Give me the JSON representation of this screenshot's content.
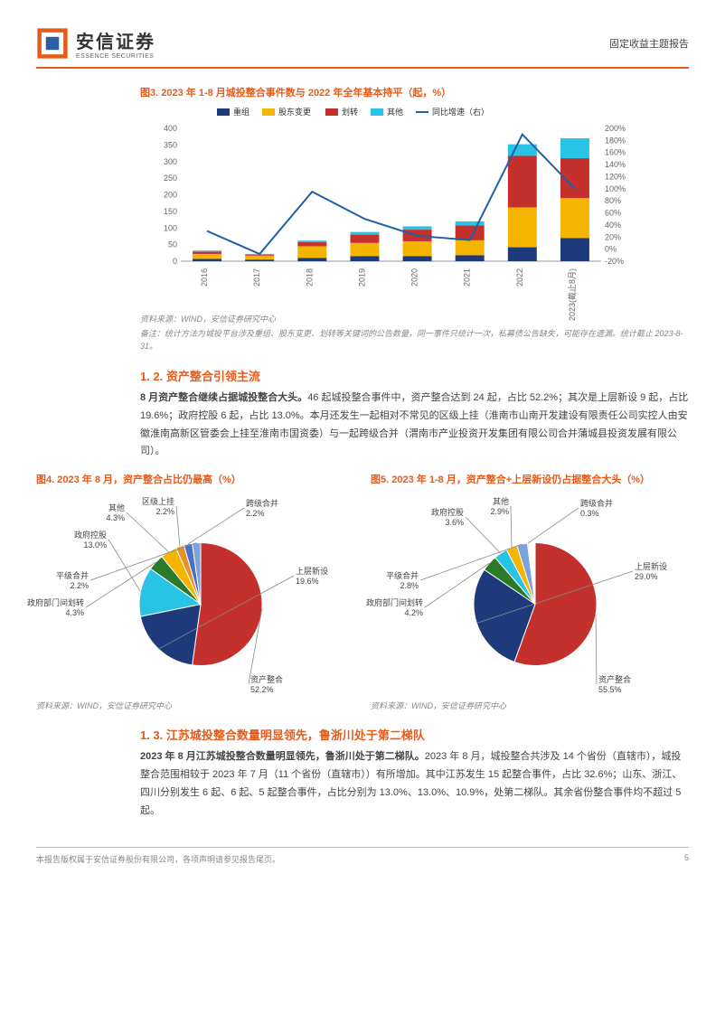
{
  "header": {
    "logo_cn": "安信证券",
    "logo_en": "ESSENCE SECURITIES",
    "doc_kind": "固定收益主题报告"
  },
  "chart3": {
    "title": "图3. 2023 年 1-8 月城投整合事件数与 2022 年全年基本持平（起，%）",
    "type": "stacked-bar-line",
    "categories": [
      "2016",
      "2017",
      "2018",
      "2019",
      "2020",
      "2021",
      "2022",
      "2023(截止8月)"
    ],
    "legend": [
      "重组",
      "股东变更",
      "划转",
      "其他",
      "同比增速（右）"
    ],
    "colors": {
      "重组": "#1e3a7a",
      "股东变更": "#f4b400",
      "划转": "#c4302b",
      "其他": "#29c3e6",
      "line": "#1e5fa8"
    },
    "yleft": {
      "min": 0,
      "max": 400,
      "step": 50
    },
    "yright": {
      "min": -20,
      "max": 200,
      "step": 20
    },
    "stacks": {
      "重组": [
        7,
        5,
        10,
        15,
        15,
        18,
        42,
        70
      ],
      "股东变更": [
        15,
        12,
        35,
        40,
        45,
        45,
        120,
        120
      ],
      "划转": [
        7,
        3,
        12,
        25,
        35,
        45,
        155,
        120
      ],
      "其他": [
        3,
        2,
        5,
        8,
        10,
        12,
        35,
        60
      ]
    },
    "line": [
      30,
      -8,
      95,
      50,
      22,
      15,
      190,
      100
    ],
    "source": "资料来源：WIND，安信证券研究中心",
    "note": "备注：统计方法为城投平台涉及重组、股东变更、划转等关键词的公告数量，同一事件只统计一次，私募债公告缺失，可能存在遗漏。统计截止 2023-8-31。"
  },
  "sec12": {
    "heading": "1. 2. 资产整合引领主流",
    "bold": "8 月资产整合继续占据城投整合大头。",
    "body": "46 起城投整合事件中，资产整合达到 24 起，占比 52.2%；其次是上层新设 9 起，占比 19.6%；政府控股 6 起，占比 13.0%。本月还发生一起相对不常见的区级上挂（淮南市山南开发建设有限责任公司实控人由安徽淮南高新区管委会上挂至淮南市国资委）与一起跨级合并（渭南市产业投资开发集团有限公司合并蒲城县投资发展有限公司）。"
  },
  "chart4": {
    "title": "图4. 2023 年 8 月，资产整合占比仍最高（%）",
    "type": "pie",
    "slices": [
      {
        "label": "资产整合",
        "value": 52.2,
        "color": "#c4302b"
      },
      {
        "label": "上层新设",
        "value": 19.6,
        "color": "#1e3a7a"
      },
      {
        "label": "政府控股",
        "value": 13.0,
        "color": "#29c3e6"
      },
      {
        "label": "政府部门间划转",
        "value": 4.3,
        "color": "#2a7a2a"
      },
      {
        "label": "其他",
        "value": 4.3,
        "color": "#f4b400"
      },
      {
        "label": "区级上挂",
        "value": 2.2,
        "color": "#e8932a"
      },
      {
        "label": "跨级合并",
        "value": 2.2,
        "color": "#4a6fc7"
      },
      {
        "label": "平级合并",
        "value": 2.2,
        "color": "#7aa3d9"
      }
    ],
    "source": "资料来源：WIND，安信证券研究中心"
  },
  "chart5": {
    "title": "图5. 2023 年 1-8 月，资产整合+上层新设仍占据整合大头（%）",
    "type": "pie",
    "slices": [
      {
        "label": "资产整合",
        "value": 55.5,
        "color": "#c4302b"
      },
      {
        "label": "上层新设",
        "value": 29.0,
        "color": "#1e3a7a"
      },
      {
        "label": "政府部门间划转",
        "value": 4.2,
        "color": "#2a7a2a"
      },
      {
        "label": "政府控股",
        "value": 3.6,
        "color": "#29c3e6"
      },
      {
        "label": "其他",
        "value": 2.9,
        "color": "#f4b400"
      },
      {
        "label": "平级合并",
        "value": 2.8,
        "color": "#7aa3d9"
      },
      {
        "label": "跨级合并",
        "value": 0.3,
        "color": "#e8932a"
      }
    ],
    "source": "资料来源：WIND，安信证券研究中心"
  },
  "sec13": {
    "heading": "1. 3. 江苏城投整合数量明显领先，鲁浙川处于第二梯队",
    "bold": "2023 年 8 月江苏城投整合数量明显领先，鲁浙川处于第二梯队。",
    "body": "2023 年 8 月，城投整合共涉及 14 个省份（直辖市），城投整合范围相较于 2023 年 7 月（11 个省份（直辖市））有所增加。其中江苏发生 15 起整合事件，占比 32.6%；山东、浙江、四川分别发生 6 起、6 起、5 起整合事件，占比分别为 13.0%、13.0%、10.9%，处第二梯队。其余省份整合事件均不超过 5 起。"
  },
  "footer": {
    "copyright": "本报告版权属于安信证券股份有限公司，各项声明请参见报告尾页。",
    "page": "5"
  }
}
